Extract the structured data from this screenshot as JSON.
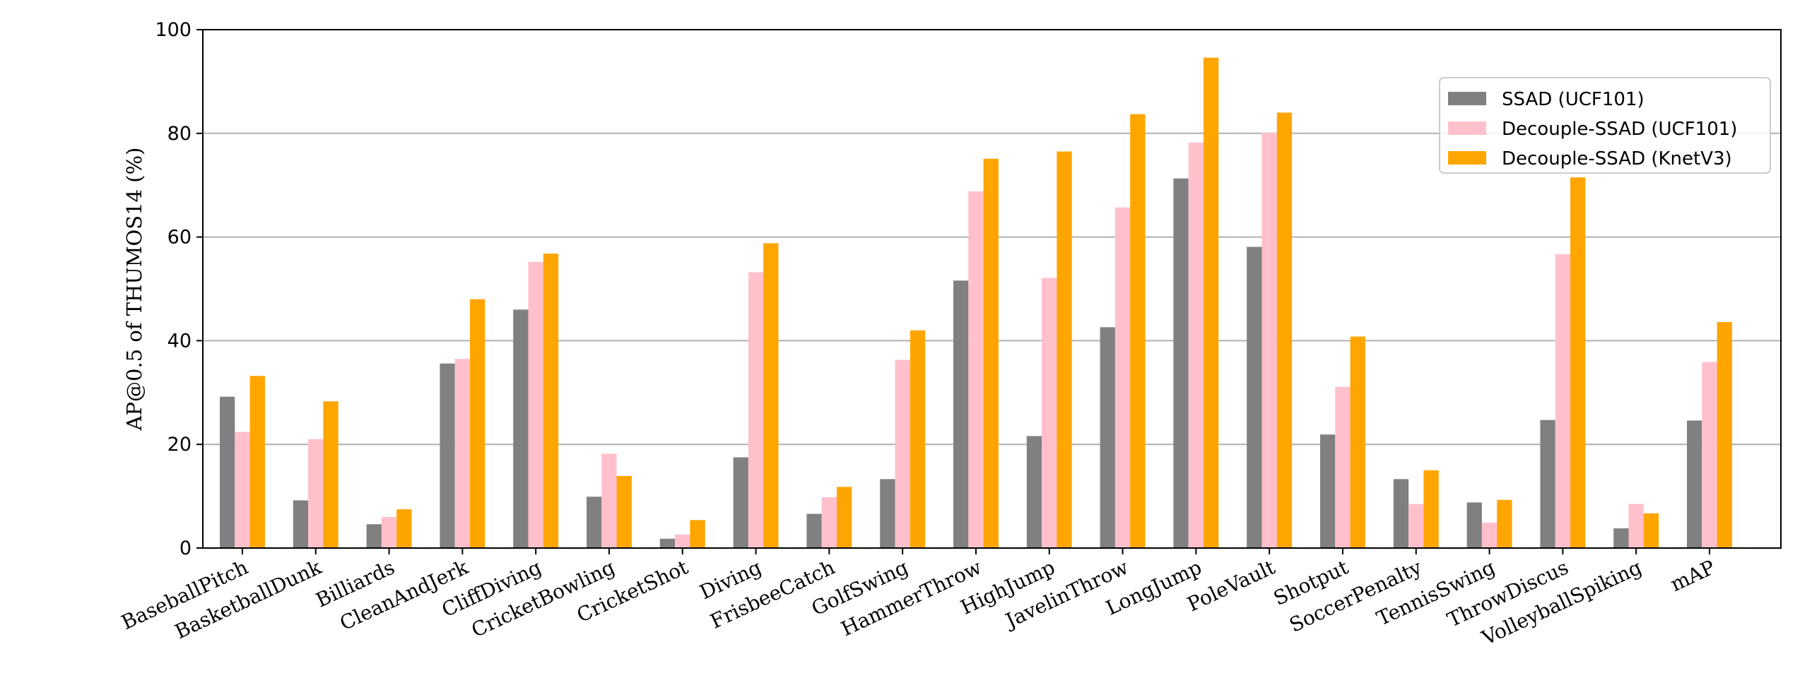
{
  "chart_data": {
    "type": "bar",
    "title": "",
    "xlabel": "",
    "ylabel": "AP@0.5 of THUMOS14 (%)",
    "ylim": [
      0,
      100
    ],
    "yticks": [
      "0",
      "20",
      "40",
      "60",
      "80",
      "100"
    ],
    "grid": "horizontal",
    "legend_position": "top-right",
    "categories": [
      "BaseballPitch",
      "BasketballDunk",
      "Billiards",
      "CleanAndJerk",
      "CliffDiving",
      "CricketBowling",
      "CricketShot",
      "Diving",
      "FrisbeeCatch",
      "GolfSwing",
      "HammerThrow",
      "HighJump",
      "JavelinThrow",
      "LongJump",
      "PoleVault",
      "Shotput",
      "SoccerPenalty",
      "TennisSwing",
      "ThrowDiscus",
      "VolleyballSpiking",
      "mAP"
    ],
    "series": [
      {
        "name": "SSAD (UCF101)",
        "color": "#808080",
        "values": [
          29.2,
          9.2,
          4.6,
          35.6,
          46.0,
          9.9,
          1.8,
          17.5,
          6.6,
          13.3,
          51.6,
          21.6,
          42.6,
          71.3,
          58.1,
          21.9,
          13.3,
          8.8,
          24.7,
          3.8,
          24.6
        ]
      },
      {
        "name": "Decouple-SSAD (UCF101)",
        "color": "#ffc0cb",
        "values": [
          22.4,
          21.0,
          6.0,
          36.5,
          55.2,
          18.2,
          2.6,
          53.2,
          9.8,
          36.3,
          68.8,
          52.1,
          65.7,
          78.2,
          80.1,
          31.1,
          8.5,
          4.9,
          56.7,
          8.5,
          35.9
        ]
      },
      {
        "name": "Decouple-SSAD (KnetV3)",
        "color": "#ffa500",
        "values": [
          33.2,
          28.3,
          7.5,
          48.0,
          56.8,
          13.9,
          5.4,
          58.8,
          11.8,
          42.0,
          75.1,
          76.5,
          83.7,
          94.6,
          84.0,
          40.8,
          15.0,
          9.3,
          71.5,
          6.7,
          43.6
        ]
      }
    ]
  }
}
